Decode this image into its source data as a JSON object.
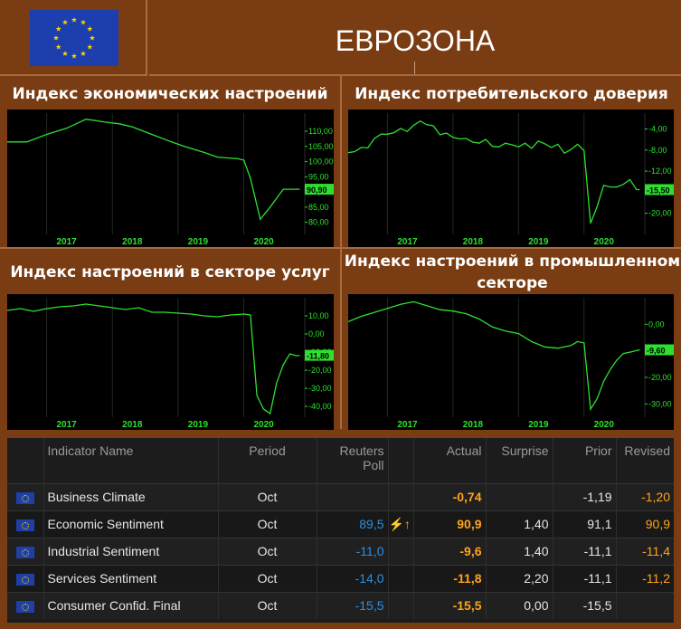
{
  "header": {
    "title": "ЕВРОЗОНА",
    "flag_icon": "eu-flag-icon"
  },
  "charts": [
    {
      "title": "Индекс экономических настроений",
      "x_ticks": [
        "2017",
        "2018",
        "2019",
        "2020"
      ],
      "y_ticks": [
        "110,00",
        "105,00",
        "100,00",
        "95,00",
        "90,00",
        "85,00",
        "80,00"
      ],
      "last_value": "90,90",
      "ylim": [
        76,
        116
      ]
    },
    {
      "title": "Индекс потребительского доверия",
      "x_ticks": [
        "2017",
        "2018",
        "2019",
        "2020"
      ],
      "y_ticks": [
        "-4,00",
        "-8,00",
        "-12,00",
        "-16,00",
        "-20,00"
      ],
      "last_value": "-15,50",
      "ylim": [
        -24,
        -1
      ]
    },
    {
      "title": "Индекс настроений в секторе услуг",
      "x_ticks": [
        "2017",
        "2018",
        "2019",
        "2020"
      ],
      "y_ticks": [
        "10,00",
        "0,00",
        "-10,00",
        "-20,00",
        "-30,00",
        "-40,00"
      ],
      "last_value": "-11,80",
      "ylim": [
        -46,
        20
      ]
    },
    {
      "title": "Индекс настроений в промышленном секторе",
      "x_ticks": [
        "2017",
        "2018",
        "2019",
        "2020"
      ],
      "y_ticks": [
        "0,00",
        "-10,00",
        "-20,00",
        "-30,00"
      ],
      "last_value": "-9,60",
      "ylim": [
        -35,
        10
      ]
    }
  ],
  "chart_data": [
    {
      "type": "line",
      "title": "Индекс экономических настроений",
      "x": [
        2016.4,
        2016.7,
        2017.0,
        2017.3,
        2017.6,
        2017.9,
        2018.1,
        2018.3,
        2018.6,
        2018.9,
        2019.1,
        2019.4,
        2019.6,
        2019.9,
        2020.0,
        2020.1,
        2020.25,
        2020.4,
        2020.6,
        2020.85
      ],
      "y": [
        106.5,
        106.5,
        109.0,
        111.0,
        114.0,
        113.0,
        112.5,
        111.5,
        109.0,
        106.5,
        105.0,
        103.0,
        101.5,
        101.0,
        100.5,
        94.5,
        81.0,
        85.0,
        90.9,
        90.9
      ],
      "ylim": [
        76,
        116
      ],
      "xlim": [
        2016.4,
        2020.9
      ]
    },
    {
      "type": "line",
      "title": "Индекс потребительского доверия",
      "x": [
        2016.4,
        2016.5,
        2016.6,
        2016.7,
        2016.8,
        2016.9,
        2017.0,
        2017.1,
        2017.2,
        2017.3,
        2017.4,
        2017.5,
        2017.6,
        2017.7,
        2017.8,
        2017.9,
        2018.0,
        2018.1,
        2018.2,
        2018.3,
        2018.4,
        2018.5,
        2018.6,
        2018.7,
        2018.8,
        2018.9,
        2019.0,
        2019.1,
        2019.2,
        2019.3,
        2019.4,
        2019.5,
        2019.6,
        2019.7,
        2019.8,
        2019.9,
        2020.0,
        2020.1,
        2020.2,
        2020.3,
        2020.4,
        2020.5,
        2020.6,
        2020.7,
        2020.8,
        2020.85
      ],
      "y": [
        -8.5,
        -8.3,
        -7.5,
        -7.6,
        -5.8,
        -5.0,
        -5.0,
        -4.7,
        -3.9,
        -4.5,
        -3.3,
        -2.5,
        -3.2,
        -3.4,
        -5.1,
        -4.8,
        -5.6,
        -5.9,
        -5.8,
        -6.5,
        -6.7,
        -6.0,
        -7.3,
        -7.4,
        -6.7,
        -7.0,
        -7.4,
        -6.7,
        -7.7,
        -6.3,
        -6.8,
        -7.5,
        -6.9,
        -8.6,
        -7.9,
        -6.9,
        -8.1,
        -21.9,
        -18.7,
        -14.7,
        -15.0,
        -15.0,
        -14.5,
        -13.6,
        -15.5,
        -15.5
      ],
      "ylim": [
        -24,
        -1
      ],
      "xlim": [
        2016.4,
        2020.9
      ]
    },
    {
      "type": "line",
      "title": "Индекс настроений в секторе услуг",
      "x": [
        2016.4,
        2016.6,
        2016.8,
        2017.0,
        2017.2,
        2017.4,
        2017.6,
        2017.8,
        2018.0,
        2018.2,
        2018.4,
        2018.6,
        2018.8,
        2019.0,
        2019.2,
        2019.4,
        2019.6,
        2019.8,
        2020.0,
        2020.1,
        2020.2,
        2020.3,
        2020.4,
        2020.5,
        2020.6,
        2020.7,
        2020.8,
        2020.85
      ],
      "y": [
        13.0,
        14.0,
        12.5,
        14.0,
        15.0,
        15.5,
        16.5,
        15.5,
        14.5,
        13.5,
        14.5,
        12.0,
        12.0,
        11.5,
        11.0,
        10.0,
        9.5,
        10.5,
        11.0,
        10.5,
        -34.0,
        -41.5,
        -44.0,
        -27.0,
        -17.0,
        -11.0,
        -12.0,
        -11.8
      ],
      "ylim": [
        -46,
        20
      ],
      "xlim": [
        2016.4,
        2020.9
      ]
    },
    {
      "type": "line",
      "title": "Индекс настроений в промышленном секторе",
      "x": [
        2016.4,
        2016.6,
        2016.8,
        2017.0,
        2017.2,
        2017.4,
        2017.6,
        2017.8,
        2018.0,
        2018.2,
        2018.4,
        2018.6,
        2018.8,
        2019.0,
        2019.2,
        2019.4,
        2019.6,
        2019.8,
        2019.9,
        2020.0,
        2020.1,
        2020.2,
        2020.3,
        2020.4,
        2020.5,
        2020.6,
        2020.7,
        2020.85
      ],
      "y": [
        1.0,
        3.0,
        4.5,
        6.0,
        7.5,
        8.5,
        7.0,
        5.5,
        5.0,
        4.0,
        2.0,
        -1.0,
        -2.5,
        -3.5,
        -6.5,
        -8.5,
        -9.0,
        -8.0,
        -6.5,
        -7.0,
        -32.0,
        -28.0,
        -21.5,
        -17.0,
        -13.5,
        -11.0,
        -10.5,
        -9.6
      ],
      "ylim": [
        -35,
        10
      ],
      "xlim": [
        2016.4,
        2020.9
      ]
    }
  ],
  "table": {
    "headers": [
      "Indicator Name",
      "Period",
      "Reuters Poll",
      "Actual",
      "Surprise",
      "Prior",
      "Revised"
    ],
    "rows": [
      {
        "name": "Business Climate",
        "period": "Oct",
        "poll": "",
        "signal": "",
        "actual": "-0,74",
        "surprise": "",
        "prior": "-1,19",
        "revised": "-1,20"
      },
      {
        "name": "Economic Sentiment",
        "period": "Oct",
        "poll": "89,5",
        "signal": "⚡↑",
        "actual": "90,9",
        "surprise": "1,40",
        "prior": "91,1",
        "revised": "90,9"
      },
      {
        "name": "Industrial Sentiment",
        "period": "Oct",
        "poll": "-11,0",
        "signal": "",
        "actual": "-9,6",
        "surprise": "1,40",
        "prior": "-11,1",
        "revised": "-11,4"
      },
      {
        "name": "Services Sentiment",
        "period": "Oct",
        "poll": "-14,0",
        "signal": "",
        "actual": "-11,8",
        "surprise": "2,20",
        "prior": "-11,1",
        "revised": "-11,2"
      },
      {
        "name": "Consumer Confid. Final",
        "period": "Oct",
        "poll": "-15,5",
        "signal": "",
        "actual": "-15,5",
        "surprise": "0,00",
        "prior": "-15,5",
        "revised": ""
      }
    ]
  },
  "colors": {
    "background": "#7a3c12",
    "line": "#2ee02e",
    "actual": "#ffa31a",
    "poll": "#2d8fe0"
  }
}
